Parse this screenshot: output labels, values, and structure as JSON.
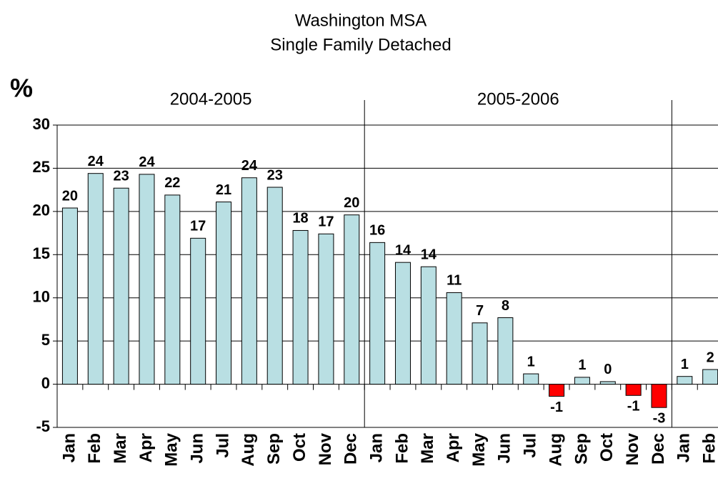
{
  "chart_data": {
    "type": "bar",
    "title": "Washington MSA",
    "subtitle": "Single Family Detached",
    "y_label": "%",
    "categories": [
      "Jan",
      "Feb",
      "Mar",
      "Apr",
      "May",
      "Jun",
      "Jul",
      "Aug",
      "Sep",
      "Oct",
      "Nov",
      "Dec",
      "Jan",
      "Feb",
      "Mar",
      "Apr",
      "May",
      "Jun",
      "Jul",
      "Aug",
      "Sep",
      "Oct",
      "Nov",
      "Dec",
      "Jan",
      "Feb"
    ],
    "values": [
      20.4,
      24.4,
      22.7,
      24.3,
      21.9,
      16.9,
      21.1,
      23.9,
      22.8,
      17.8,
      17.4,
      19.6,
      16.4,
      14.1,
      13.6,
      10.6,
      7.1,
      7.7,
      1.2,
      -1.4,
      0.8,
      0.3,
      -1.3,
      -2.7,
      0.9,
      1.7
    ],
    "value_labels": [
      "20",
      "24",
      "23",
      "24",
      "22",
      "17",
      "21",
      "24",
      "23",
      "18",
      "17",
      "20",
      "16",
      "14",
      "14",
      "11",
      "7",
      "8",
      "1",
      "-1",
      "1",
      "0",
      "-1",
      "-3",
      "1",
      "2"
    ],
    "groups": [
      {
        "label": "2004-2005",
        "size": 12
      },
      {
        "label": "2005-2006",
        "size": 12
      }
    ],
    "color": "#b9dfe3",
    "negative_color": "#ff0000",
    "ylim": [
      -5,
      30
    ],
    "yticks": [
      -5,
      0,
      5,
      10,
      15,
      20,
      25,
      30
    ],
    "grid": true
  }
}
